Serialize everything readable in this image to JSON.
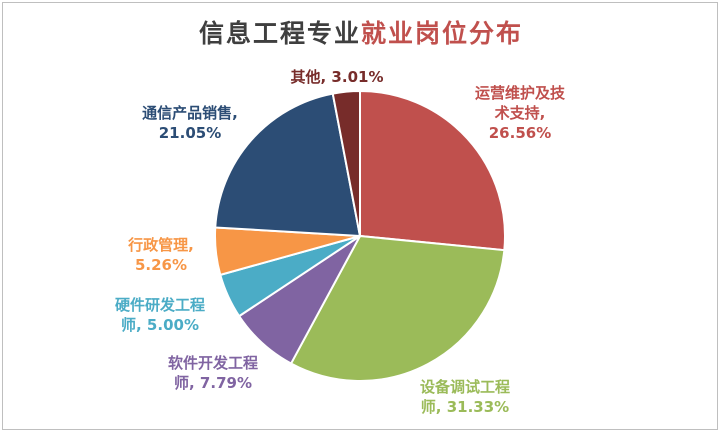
{
  "chart_data": {
    "type": "pie",
    "title": {
      "part1": "信息工程专业",
      "part2": "就业岗位分布"
    },
    "slices": [
      {
        "name": "运营维护及技术支持",
        "value": 26.56,
        "color": "#c0504d",
        "label_lines": [
          "运营维护及技",
          "术支持,",
          "26.56%"
        ]
      },
      {
        "name": "设备调试工程师",
        "value": 31.33,
        "color": "#9bbb59",
        "label_lines": [
          "设备调试工程",
          "师, 31.33%"
        ]
      },
      {
        "name": "软件开发工程师",
        "value": 7.79,
        "color": "#8064a2",
        "label_lines": [
          "软件开发工程",
          "师, 7.79%"
        ]
      },
      {
        "name": "硬件研发工程师",
        "value": 5.0,
        "color": "#4bacc6",
        "label_lines": [
          "硬件研发工程",
          "师, 5.00%"
        ]
      },
      {
        "name": "行政管理",
        "value": 5.26,
        "color": "#f79646",
        "label_lines": [
          "行政管理,",
          "5.26%"
        ]
      },
      {
        "name": "通信产品销售",
        "value": 21.05,
        "color": "#2c4d75",
        "label_lines": [
          "通信产品销售,",
          "21.05%"
        ]
      },
      {
        "name": "其他",
        "value": 3.01,
        "color": "#772c2a",
        "label_lines": [
          "其他, 3.01%"
        ]
      }
    ]
  }
}
